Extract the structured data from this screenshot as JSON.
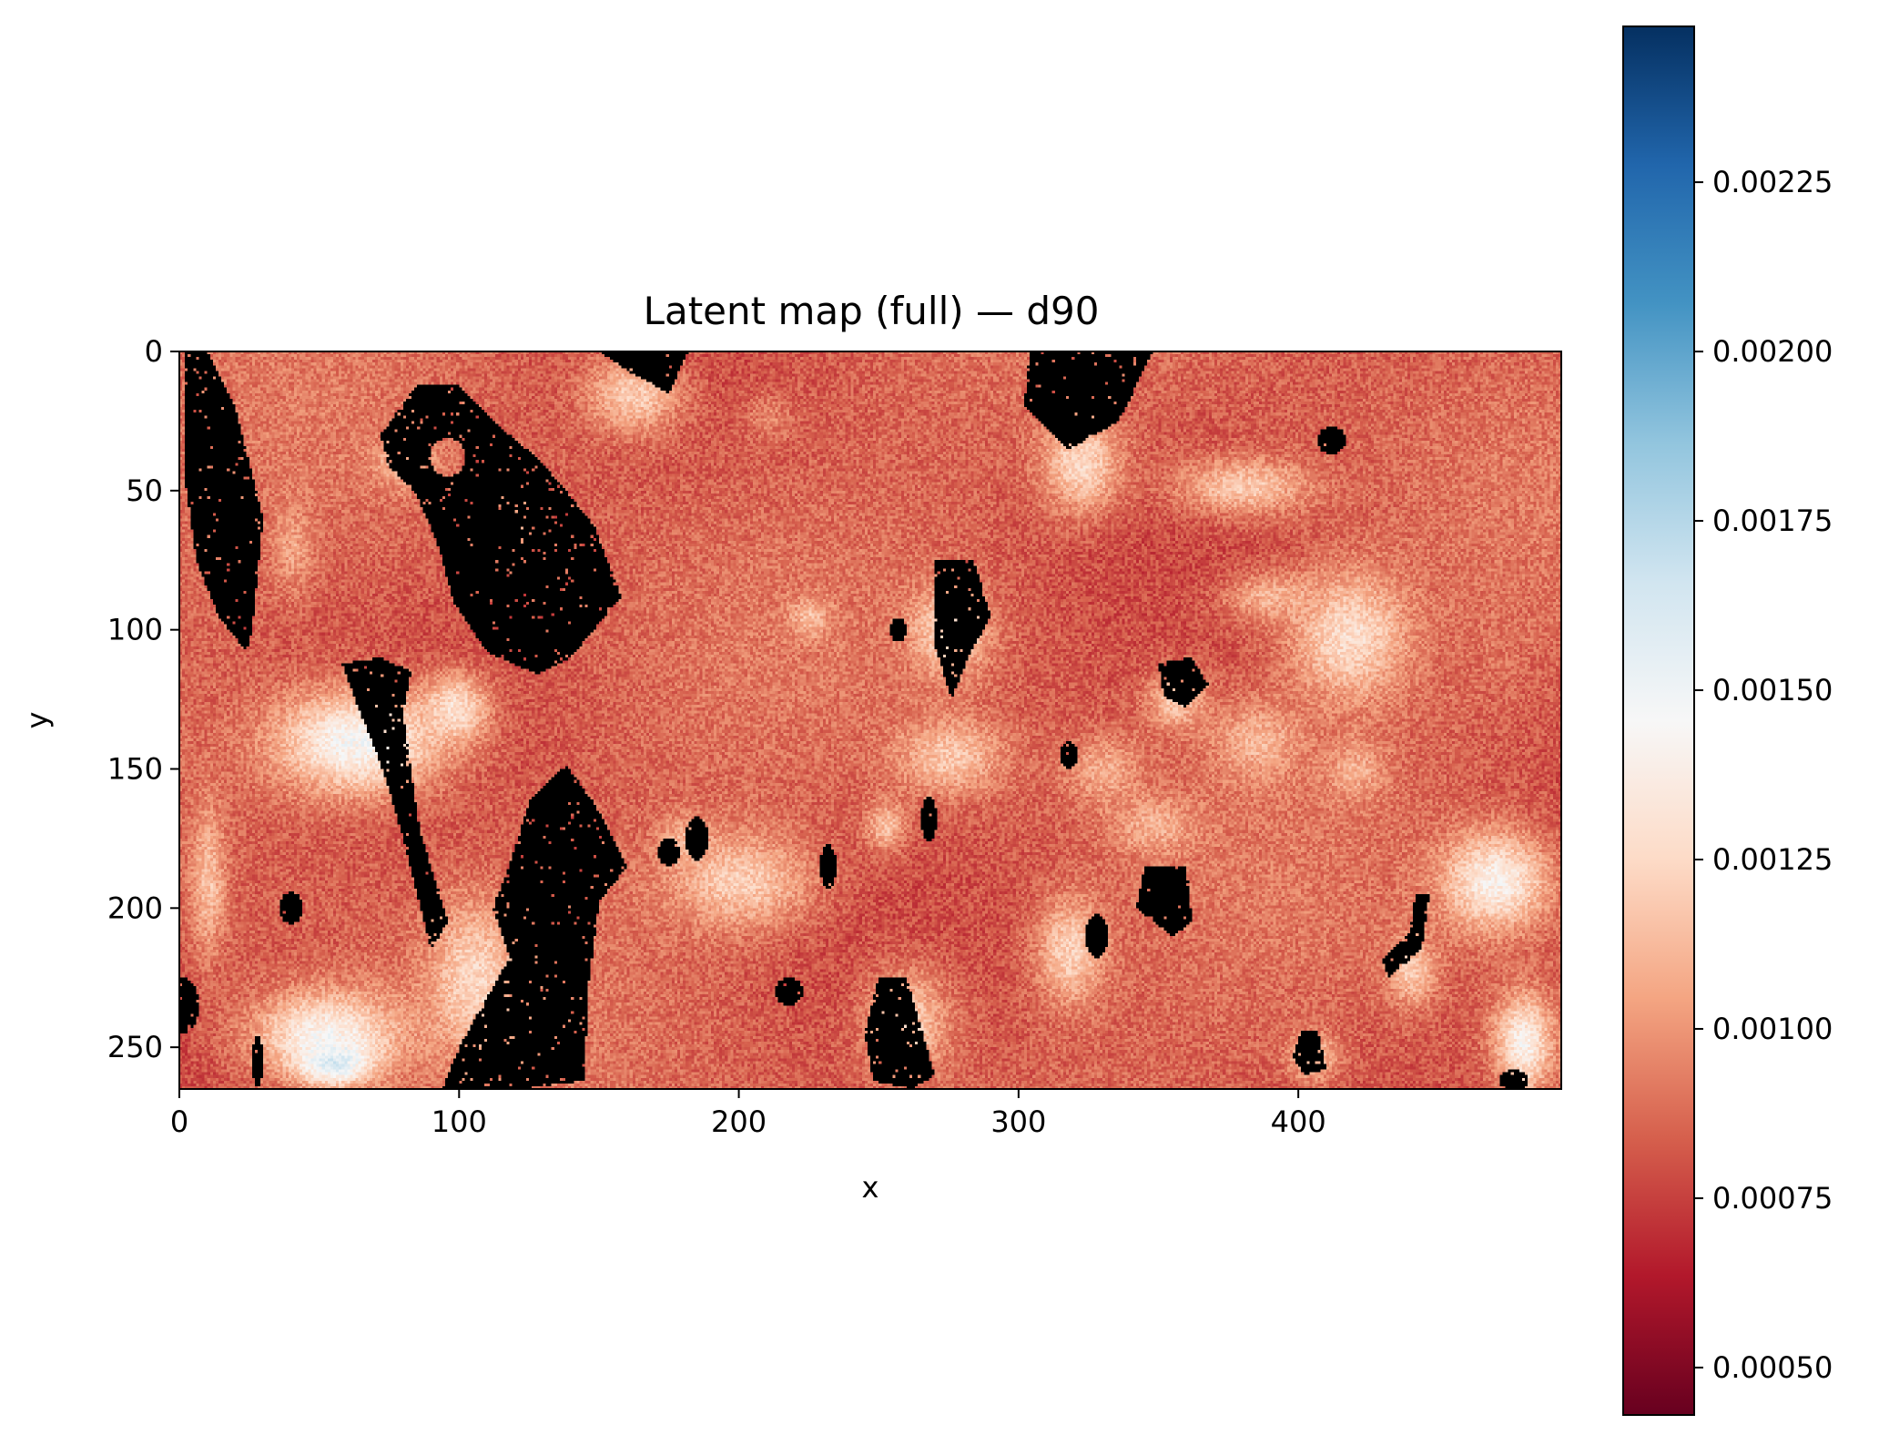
{
  "chart_data": {
    "type": "heatmap",
    "title": "Latent map (full) — d90",
    "xlabel": "x",
    "ylabel": "y",
    "grid": false,
    "image_width": 494,
    "image_height": 265,
    "xlim": [
      0,
      494
    ],
    "ylim": [
      265,
      0
    ],
    "x_ticks": [
      0,
      100,
      200,
      300,
      400
    ],
    "y_ticks": [
      0,
      50,
      100,
      150,
      200,
      250
    ],
    "colormap": "RdBu",
    "colorbar": {
      "range": [
        0.00043,
        0.00248
      ],
      "ticks": [
        "0.00050",
        "0.00075",
        "0.00100",
        "0.00125",
        "0.00150",
        "0.00175",
        "0.00200",
        "0.00225"
      ],
      "tick_values": [
        0.0005,
        0.00075,
        0.001,
        0.00125,
        0.0015,
        0.00175,
        0.002,
        0.00225
      ]
    },
    "background_level": 0.00085,
    "masked_color": "#000000",
    "masked_regions": [
      {
        "shape": "poly",
        "pts": [
          [
            2,
            0
          ],
          [
            10,
            0
          ],
          [
            20,
            20
          ],
          [
            30,
            60
          ],
          [
            26,
            100
          ],
          [
            24,
            108
          ],
          [
            14,
            95
          ],
          [
            6,
            75
          ],
          [
            2,
            45
          ]
        ]
      },
      {
        "shape": "poly",
        "pts": [
          [
            72,
            30
          ],
          [
            85,
            12
          ],
          [
            100,
            12
          ],
          [
            112,
            25
          ],
          [
            130,
            40
          ],
          [
            148,
            62
          ],
          [
            158,
            88
          ],
          [
            140,
            110
          ],
          [
            128,
            116
          ],
          [
            110,
            108
          ],
          [
            98,
            90
          ],
          [
            92,
            68
          ],
          [
            84,
            50
          ],
          [
            75,
            42
          ]
        ]
      },
      {
        "shape": "ellipse",
        "cx": 96,
        "cy": 38,
        "rx": 6,
        "ry": 7,
        "level": 0.00105
      },
      {
        "shape": "poly",
        "pts": [
          [
            138,
            148
          ],
          [
            150,
            165
          ],
          [
            160,
            185
          ],
          [
            150,
            198
          ],
          [
            146,
            230
          ],
          [
            145,
            262
          ],
          [
            122,
            265
          ],
          [
            94,
            265
          ],
          [
            100,
            250
          ],
          [
            118,
            218
          ],
          [
            112,
            200
          ],
          [
            118,
            185
          ],
          [
            125,
            162
          ]
        ]
      },
      {
        "shape": "poly",
        "pts": [
          [
            58,
            112
          ],
          [
            72,
            110
          ],
          [
            83,
            115
          ],
          [
            80,
            130
          ],
          [
            86,
            172
          ],
          [
            96,
            205
          ],
          [
            90,
            215
          ],
          [
            80,
            175
          ],
          [
            72,
            148
          ],
          [
            64,
            128
          ]
        ]
      },
      {
        "shape": "poly",
        "pts": [
          [
            150,
            0
          ],
          [
            165,
            0
          ],
          [
            182,
            0
          ],
          [
            175,
            15
          ],
          [
            162,
            8
          ]
        ]
      },
      {
        "shape": "poly",
        "pts": [
          [
            304,
            0
          ],
          [
            348,
            0
          ],
          [
            336,
            25
          ],
          [
            318,
            35
          ],
          [
            302,
            20
          ]
        ]
      },
      {
        "shape": "poly",
        "pts": [
          [
            270,
            75
          ],
          [
            284,
            75
          ],
          [
            290,
            95
          ],
          [
            282,
            110
          ],
          [
            276,
            125
          ],
          [
            270,
            105
          ]
        ]
      },
      {
        "shape": "poly",
        "pts": [
          [
            350,
            112
          ],
          [
            362,
            110
          ],
          [
            368,
            120
          ],
          [
            360,
            128
          ],
          [
            352,
            124
          ]
        ]
      },
      {
        "shape": "poly",
        "pts": [
          [
            345,
            185
          ],
          [
            360,
            185
          ],
          [
            362,
            205
          ],
          [
            355,
            210
          ],
          [
            342,
            200
          ]
        ]
      },
      {
        "shape": "poly",
        "pts": [
          [
            442,
            195
          ],
          [
            447,
            195
          ],
          [
            444,
            215
          ],
          [
            432,
            225
          ],
          [
            430,
            218
          ],
          [
            440,
            208
          ]
        ]
      },
      {
        "shape": "poly",
        "pts": [
          [
            250,
            225
          ],
          [
            260,
            225
          ],
          [
            270,
            260
          ],
          [
            262,
            265
          ],
          [
            248,
            262
          ],
          [
            245,
            245
          ]
        ]
      },
      {
        "shape": "poly",
        "pts": [
          [
            401,
            244
          ],
          [
            407,
            244
          ],
          [
            410,
            258
          ],
          [
            402,
            260
          ],
          [
            398,
            253
          ]
        ]
      },
      {
        "shape": "ellipse",
        "cx": 412,
        "cy": 32,
        "rx": 5,
        "ry": 5
      },
      {
        "shape": "ellipse",
        "cx": 185,
        "cy": 175,
        "rx": 4,
        "ry": 8
      },
      {
        "shape": "ellipse",
        "cx": 175,
        "cy": 180,
        "rx": 4,
        "ry": 5
      },
      {
        "shape": "ellipse",
        "cx": 232,
        "cy": 185,
        "rx": 3,
        "ry": 8
      },
      {
        "shape": "ellipse",
        "cx": 218,
        "cy": 230,
        "rx": 5,
        "ry": 5
      },
      {
        "shape": "ellipse",
        "cx": 328,
        "cy": 210,
        "rx": 4,
        "ry": 8
      },
      {
        "shape": "ellipse",
        "cx": 257,
        "cy": 100,
        "rx": 3,
        "ry": 4
      },
      {
        "shape": "ellipse",
        "cx": 268,
        "cy": 168,
        "rx": 3,
        "ry": 8
      },
      {
        "shape": "ellipse",
        "cx": 318,
        "cy": 145,
        "rx": 3,
        "ry": 5
      },
      {
        "shape": "ellipse",
        "cx": 2,
        "cy": 235,
        "rx": 5,
        "ry": 10
      },
      {
        "shape": "ellipse",
        "cx": 40,
        "cy": 200,
        "rx": 4,
        "ry": 6
      },
      {
        "shape": "ellipse",
        "cx": 28,
        "cy": 255,
        "rx": 2,
        "ry": 10
      },
      {
        "shape": "ellipse",
        "cx": 477,
        "cy": 262,
        "rx": 5,
        "ry": 4
      }
    ],
    "light_regions": [
      {
        "cx": 162,
        "cy": 15,
        "rx": 20,
        "ry": 16,
        "level": 0.0012
      },
      {
        "cx": 210,
        "cy": 23,
        "rx": 10,
        "ry": 10,
        "level": 0.00095
      },
      {
        "cx": 10,
        "cy": 190,
        "rx": 7,
        "ry": 30,
        "level": 0.00115
      },
      {
        "cx": 63,
        "cy": 140,
        "rx": 35,
        "ry": 22,
        "level": 0.00145
      },
      {
        "cx": 98,
        "cy": 128,
        "rx": 14,
        "ry": 14,
        "level": 0.0013
      },
      {
        "cx": 105,
        "cy": 225,
        "rx": 18,
        "ry": 30,
        "level": 0.00125
      },
      {
        "cx": 52,
        "cy": 245,
        "rx": 30,
        "ry": 18,
        "level": 0.0014
      },
      {
        "cx": 55,
        "cy": 255,
        "rx": 15,
        "ry": 9,
        "level": 0.0016
      },
      {
        "cx": 80,
        "cy": 40,
        "rx": 14,
        "ry": 10,
        "level": 0.0011
      },
      {
        "cx": 40,
        "cy": 70,
        "rx": 8,
        "ry": 18,
        "level": 0.00105
      },
      {
        "cx": 322,
        "cy": 40,
        "rx": 16,
        "ry": 20,
        "level": 0.00125
      },
      {
        "cx": 380,
        "cy": 48,
        "rx": 28,
        "ry": 12,
        "level": 0.00118
      },
      {
        "cx": 418,
        "cy": 102,
        "rx": 24,
        "ry": 26,
        "level": 0.00128
      },
      {
        "cx": 390,
        "cy": 88,
        "rx": 20,
        "ry": 10,
        "level": 0.0011
      },
      {
        "cx": 275,
        "cy": 100,
        "rx": 16,
        "ry": 18,
        "level": 0.00125
      },
      {
        "cx": 275,
        "cy": 145,
        "rx": 22,
        "ry": 16,
        "level": 0.00118
      },
      {
        "cx": 200,
        "cy": 190,
        "rx": 30,
        "ry": 20,
        "level": 0.0012
      },
      {
        "cx": 318,
        "cy": 215,
        "rx": 14,
        "ry": 22,
        "level": 0.00122
      },
      {
        "cx": 348,
        "cy": 170,
        "rx": 18,
        "ry": 12,
        "level": 0.0011
      },
      {
        "cx": 470,
        "cy": 190,
        "rx": 22,
        "ry": 20,
        "level": 0.0014
      },
      {
        "cx": 480,
        "cy": 248,
        "rx": 12,
        "ry": 20,
        "level": 0.0014
      },
      {
        "cx": 356,
        "cy": 125,
        "rx": 12,
        "ry": 12,
        "level": 0.00118
      },
      {
        "cx": 385,
        "cy": 140,
        "rx": 18,
        "ry": 16,
        "level": 0.00112
      },
      {
        "cx": 420,
        "cy": 150,
        "rx": 12,
        "ry": 12,
        "level": 0.0011
      },
      {
        "cx": 330,
        "cy": 150,
        "rx": 16,
        "ry": 14,
        "level": 0.00108
      },
      {
        "cx": 440,
        "cy": 222,
        "rx": 10,
        "ry": 14,
        "level": 0.0012
      },
      {
        "cx": 405,
        "cy": 253,
        "rx": 10,
        "ry": 10,
        "level": 0.00118
      },
      {
        "cx": 225,
        "cy": 95,
        "rx": 8,
        "ry": 8,
        "level": 0.00115
      },
      {
        "cx": 180,
        "cy": 175,
        "rx": 10,
        "ry": 10,
        "level": 0.0011
      },
      {
        "cx": 260,
        "cy": 240,
        "rx": 18,
        "ry": 22,
        "level": 0.00118
      },
      {
        "cx": 470,
        "cy": 100,
        "rx": 18,
        "ry": 24,
        "level": 0.0009
      },
      {
        "cx": 120,
        "cy": 60,
        "rx": 8,
        "ry": 14,
        "level": 0.00108
      },
      {
        "cx": 252,
        "cy": 170,
        "rx": 8,
        "ry": 10,
        "level": 0.00115
      }
    ]
  }
}
